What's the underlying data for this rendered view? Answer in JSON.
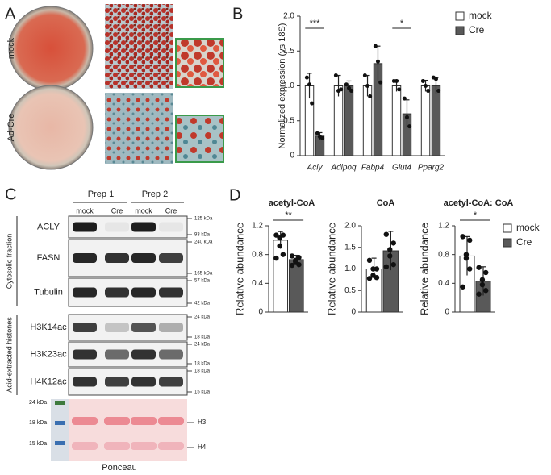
{
  "panel_labels": [
    "A",
    "B",
    "C",
    "D"
  ],
  "panel_a": {
    "rows": [
      "mock",
      "Ad-Cre"
    ]
  },
  "panel_c": {
    "preps": [
      "Prep 1",
      "Prep 2"
    ],
    "lanes": [
      "mock",
      "Cre",
      "mock",
      "Cre"
    ],
    "groups": [
      "Cytosolic fraction",
      "Acid-extracted histones"
    ],
    "rows": [
      {
        "label": "ACLY",
        "markers": [
          "125 kDa",
          "93 kDa"
        ]
      },
      {
        "label": "FASN",
        "markers": [
          "240 kDa",
          "165 kDa"
        ]
      },
      {
        "label": "Tubulin",
        "markers": [
          "57 kDa",
          "42 kDa"
        ]
      },
      {
        "label": "H3K14ac",
        "markers": [
          "24 kDa",
          "18 kDa"
        ]
      },
      {
        "label": "H3K23ac",
        "markers": [
          "24 kDa",
          "18 kDa"
        ]
      },
      {
        "label": "H4K12ac",
        "markers": [
          "18 kDa",
          "15 kDa"
        ]
      }
    ],
    "ponceau": {
      "markers": [
        "24 kDa",
        "18 kDa",
        "15 kDa"
      ],
      "bands": [
        "H3",
        "H4"
      ],
      "label": "Ponceau"
    }
  },
  "chart_data": [
    {
      "type": "bar",
      "ylabel": "Normalized expression (vs 18S)",
      "categories": [
        "Acly",
        "Adipoq",
        "Fabp4",
        "Glut4",
        "Pparg2"
      ],
      "series": [
        {
          "name": "mock",
          "color": "#ffffff",
          "values": [
            1.0,
            1.0,
            1.0,
            1.0,
            1.0
          ],
          "errors": [
            0.18,
            0.15,
            0.15,
            0.08,
            0.08
          ],
          "points": [
            [
              1.12,
              1.02,
              0.75
            ],
            [
              1.15,
              0.93,
              0.95
            ],
            [
              1.15,
              1.0,
              0.85
            ],
            [
              1.07,
              1.07,
              0.95
            ],
            [
              1.07,
              1.0,
              0.93
            ]
          ]
        },
        {
          "name": "Cre",
          "color": "#595959",
          "values": [
            0.28,
            1.0,
            1.32,
            0.6,
            1.0
          ],
          "errors": [
            0.05,
            0.07,
            0.25,
            0.2,
            0.12
          ],
          "points": [
            [
              0.32,
              0.27,
              0.25
            ],
            [
              1.02,
              0.97,
              0.93
            ],
            [
              1.57,
              1.35,
              1.05
            ],
            [
              0.82,
              0.55,
              0.42
            ],
            [
              1.12,
              1.1,
              0.93
            ]
          ]
        }
      ],
      "significance": [
        "***",
        null,
        null,
        "*",
        null
      ],
      "ylim": [
        0,
        2.0
      ],
      "yticks": [
        0,
        0.5,
        {
          "value": 1.0,
          "label": "1.0"
        },
        1.5,
        {
          "value": 2.0,
          "label": "2.0"
        }
      ],
      "legend": true
    },
    {
      "type": "bar",
      "title": "acetyl-CoA",
      "ylabel": "Relative abundance",
      "categories": [
        null
      ],
      "series": [
        {
          "name": "mock",
          "color": "#ffffff",
          "values": [
            1.0
          ],
          "errors": [
            0.12
          ],
          "points": [
            [
              1.07,
              1.07,
              1.03,
              0.92,
              0.8,
              0.75
            ]
          ]
        },
        {
          "name": "Cre",
          "color": "#595959",
          "values": [
            0.73
          ],
          "errors": [
            0.06
          ],
          "points": [
            [
              0.78,
              0.76,
              0.72,
              0.7,
              0.66,
              0.65
            ]
          ]
        }
      ],
      "significance": [
        "**"
      ],
      "ylim": [
        0,
        1.2
      ],
      "yticks": [
        0,
        0.4,
        0.8,
        1.2
      ],
      "legend": false
    },
    {
      "type": "bar",
      "title": "CoA",
      "ylabel": "Relative abundance",
      "categories": [
        null
      ],
      "series": [
        {
          "name": "mock",
          "color": "#ffffff",
          "values": [
            1.0
          ],
          "errors": [
            0.25
          ],
          "points": [
            [
              1.2,
              1.0,
              1.0,
              0.85,
              0.8,
              0.78
            ]
          ]
        },
        {
          "name": "Cre",
          "color": "#595959",
          "values": [
            1.42
          ],
          "errors": [
            0.45
          ],
          "points": [
            [
              1.8,
              1.6,
              1.45,
              1.3,
              1.1,
              1.05
            ]
          ]
        }
      ],
      "significance": [
        null
      ],
      "ylim": [
        0,
        2.0
      ],
      "yticks": [
        0,
        0.5,
        {
          "value": 1.0,
          "label": "1.0"
        },
        1.5,
        {
          "value": 2.0,
          "label": "2.0"
        }
      ],
      "legend": false
    },
    {
      "type": "bar",
      "title": "acetyl-CoA: CoA",
      "ylabel": "Relative abundance",
      "categories": [
        null
      ],
      "series": [
        {
          "name": "mock",
          "color": "#ffffff",
          "values": [
            0.78
          ],
          "errors": [
            0.27
          ],
          "points": [
            [
              1.05,
              1.0,
              0.8,
              0.75,
              0.6,
              0.35
            ]
          ]
        },
        {
          "name": "Cre",
          "color": "#595959",
          "values": [
            0.43
          ],
          "errors": [
            0.2
          ],
          "points": [
            [
              0.62,
              0.55,
              0.45,
              0.38,
              0.3,
              0.25
            ]
          ]
        }
      ],
      "significance": [
        "*"
      ],
      "ylim": [
        0,
        1.2
      ],
      "yticks": [
        0,
        0.4,
        0.8,
        1.2
      ],
      "legend": true
    }
  ]
}
